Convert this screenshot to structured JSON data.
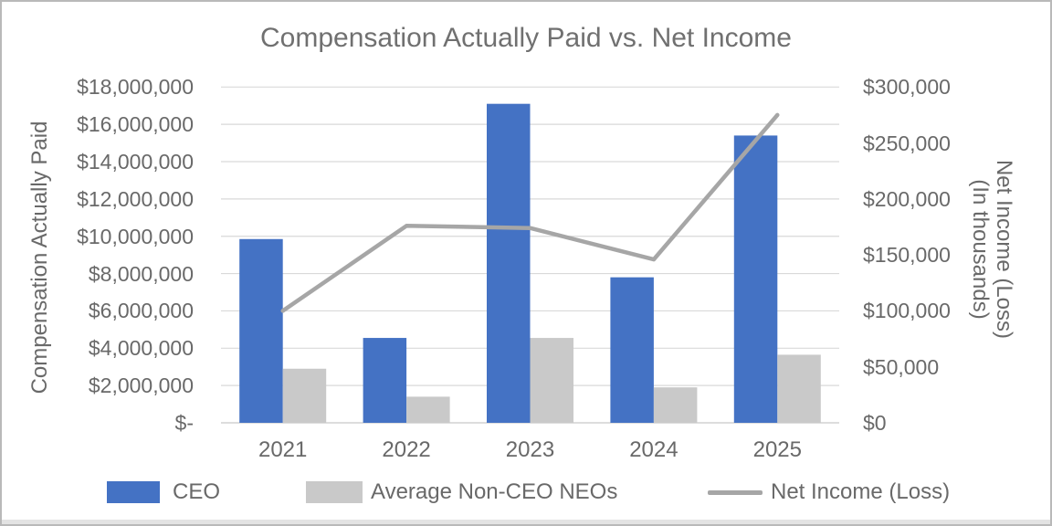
{
  "title": "Compensation Actually Paid vs. Net Income",
  "chart_data": {
    "type": "bar+line combo",
    "title": "Compensation Actually Paid vs. Net Income",
    "categories": [
      "2021",
      "2022",
      "2023",
      "2024",
      "2025"
    ],
    "series": [
      {
        "name": "CEO",
        "type": "bar",
        "axis": "left",
        "color": "#4472C4",
        "values": [
          9850000,
          4550000,
          17100000,
          7800000,
          15400000
        ]
      },
      {
        "name": "Average Non-CEO NEOs",
        "type": "bar",
        "axis": "left",
        "color": "#C9C9C9",
        "values": [
          2900000,
          1400000,
          4550000,
          1900000,
          3650000
        ]
      },
      {
        "name": "Net Income (Loss)",
        "type": "line",
        "axis": "right",
        "color": "#A6A6A6",
        "values": [
          100000,
          176000,
          174000,
          146000,
          275000
        ]
      }
    ],
    "left_axis": {
      "title": "Compensation Actually Paid",
      "min": 0,
      "max": 18000000,
      "step": 2000000,
      "tick_labels": [
        "$18,000,000",
        "$16,000,000",
        "$14,000,000",
        "$12,000,000",
        "$10,000,000",
        "$8,000,000",
        "$6,000,000",
        "$4,000,000",
        "$2,000,000",
        "$-"
      ]
    },
    "right_axis": {
      "title_line1": "Net Income (Loss)",
      "title_line2": "(In thousands)",
      "min": 0,
      "max": 300000,
      "step": 50000,
      "tick_labels": [
        "$300,000",
        "$250,000",
        "$200,000",
        "$150,000",
        "$100,000",
        "$50,000",
        "$0"
      ]
    },
    "legend": [
      "CEO",
      "Average Non-CEO NEOs",
      "Net Income (Loss)"
    ],
    "layout": {
      "grid": "horizontal-only",
      "legend_position": "bottom"
    },
    "colors": {
      "ceo_bar": "#4472C4",
      "neo_bar": "#C9C9C9",
      "net_income_line": "#A6A6A6",
      "gridline": "#D9D9D9",
      "axis_line": "#D2D2D2",
      "text": "#696969"
    }
  }
}
